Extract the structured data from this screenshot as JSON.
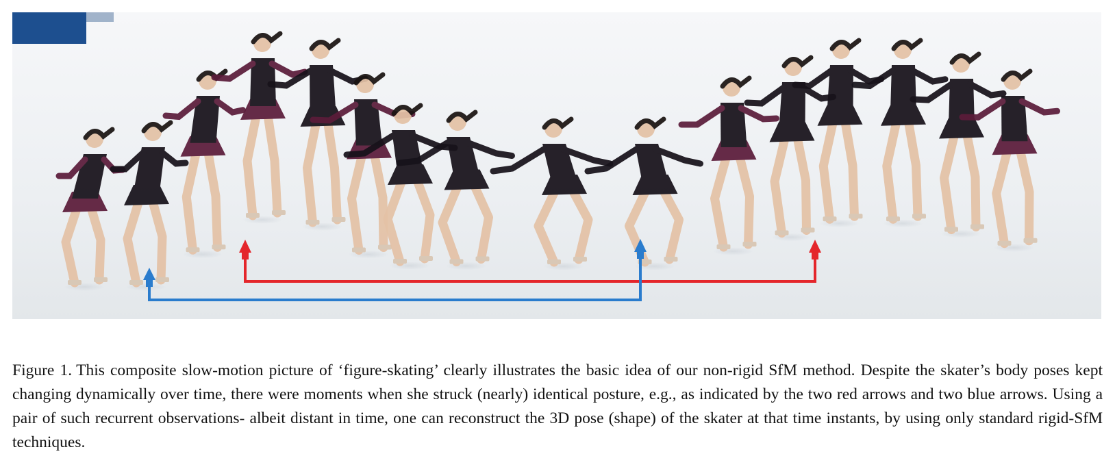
{
  "figure": {
    "label": "Figure 1.",
    "caption": "This composite slow-motion picture of ‘figure-skating’ clearly illustrates the basic idea of our non-rigid SfM method. Despite the skater’s body poses kept changing dynamically over time, there were moments when she struck (nearly) identical posture, e.g., as indicated by the two red arrows and two blue arrows. Using a pair of such recurrent observations- albeit distant in time, one can reconstruct the 3D pose (shape) of the skater at that time instants, by using only standard rigid-SfM techniques."
  },
  "colors": {
    "ice": "#eef1f4",
    "rink_board": "#1d4f8f",
    "dress_dark": "#17121a",
    "dress_burgundy": "#5b1c3a",
    "skin": "#e4c2a6",
    "red_arrow": "#e4262b",
    "blue_arrow": "#2a7ccd"
  },
  "arrows": {
    "red_pair": "recurrent posture (red)",
    "blue_pair": "recurrent posture (blue)"
  }
}
